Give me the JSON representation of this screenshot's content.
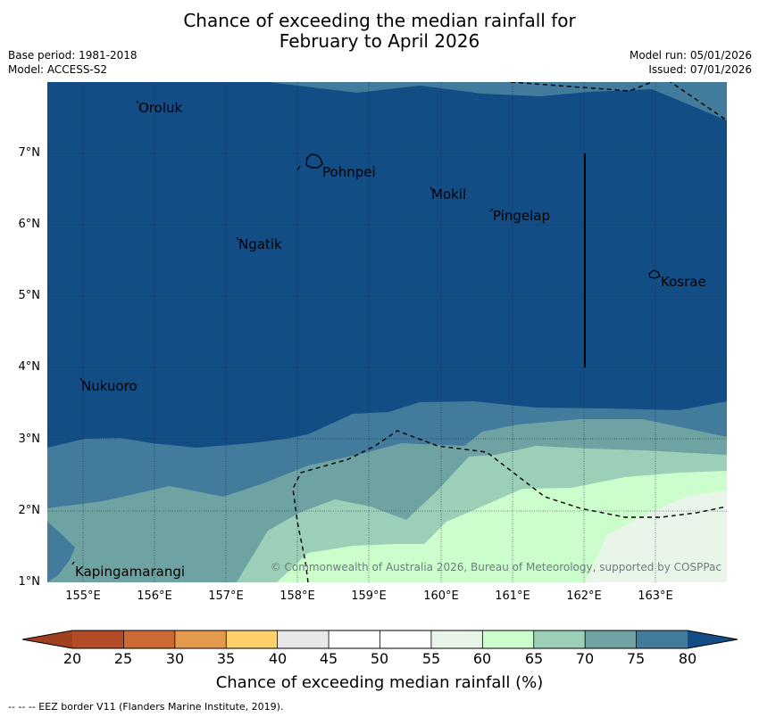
{
  "title_line1": "Chance of exceeding the median rainfall for",
  "title_line2": "February to April 2026",
  "base_period": "Base period: 1981-2018",
  "model": "Model: ACCESS-S2",
  "model_run": "Model run: 05/01/2026",
  "issued": "Issued: 07/01/2026",
  "copyright": "© Commonwealth of Australia 2026, Bureau of Meteorology, supported by COSPPac",
  "lat_labels": [
    "7°N",
    "6°N",
    "5°N",
    "4°N",
    "3°N",
    "2°N",
    "1°N"
  ],
  "lon_labels": [
    "155°E",
    "156°E",
    "157°E",
    "158°E",
    "159°E",
    "160°E",
    "161°E",
    "162°E",
    "163°E"
  ],
  "places": [
    "Oroluk",
    "Pohnpei",
    "Mokil",
    "Pingelap",
    "Ngatik",
    "Kosrae",
    "Nukuoro",
    "Kapingamarangi"
  ],
  "colorbar": {
    "ticks": [
      "20",
      "25",
      "30",
      "35",
      "40",
      "45",
      "50",
      "55",
      "60",
      "65",
      "70",
      "75",
      "80"
    ],
    "colors": [
      "#a0401e",
      "#b34b26",
      "#cd6a34",
      "#e39a4c",
      "#fdd06c",
      "#e8e8e8",
      "#ffffff",
      "#ffffff",
      "#eaf5e9",
      "#ccfdcc",
      "#9ccfb8",
      "#6fa3a3",
      "#427b9b",
      "#134d86"
    ],
    "label": "Chance of exceeding median rainfall (%)"
  },
  "footnote": "--  --  -- EEZ border V11 (Flanders Marine Institute, 2019)."
}
